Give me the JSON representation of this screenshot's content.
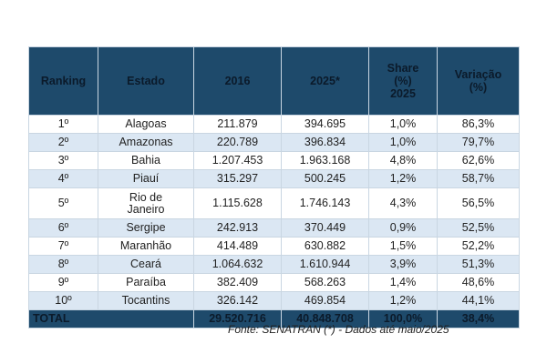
{
  "chart_data": {
    "type": "table",
    "columns": [
      "Ranking",
      "Estado",
      "2016",
      "2025*",
      "Share (%) 2025",
      "Variação (%)"
    ],
    "header": {
      "ranking": "Ranking",
      "estado": "Estado",
      "y2016": "2016",
      "y2025": "2025*",
      "share_l1": "Share",
      "share_l2": "(%)",
      "share_l3": "2025",
      "var_l1": "Variação",
      "var_l2": "(%)"
    },
    "rows": [
      {
        "rank": "1º",
        "estado": "Alagoas",
        "y2016": "211.879",
        "y2025": "394.695",
        "share": "1,0%",
        "variacao": "86,3%"
      },
      {
        "rank": "2º",
        "estado": "Amazonas",
        "y2016": "220.789",
        "y2025": "396.834",
        "share": "1,0%",
        "variacao": "79,7%"
      },
      {
        "rank": "3º",
        "estado": "Bahia",
        "y2016": "1.207.453",
        "y2025": "1.963.168",
        "share": "4,8%",
        "variacao": "62,6%"
      },
      {
        "rank": "4º",
        "estado": "Piauí",
        "y2016": "315.297",
        "y2025": "500.245",
        "share": "1,2%",
        "variacao": "58,7%"
      },
      {
        "rank": "5º",
        "estado_l1": "Rio de",
        "estado_l2": "Janeiro",
        "y2016": "1.115.628",
        "y2025": "1.746.143",
        "share": "4,3%",
        "variacao": "56,5%"
      },
      {
        "rank": "6º",
        "estado": "Sergipe",
        "y2016": "242.913",
        "y2025": "370.449",
        "share": "0,9%",
        "variacao": "52,5%"
      },
      {
        "rank": "7º",
        "estado": "Maranhão",
        "y2016": "414.489",
        "y2025": "630.882",
        "share": "1,5%",
        "variacao": "52,2%"
      },
      {
        "rank": "8º",
        "estado": "Ceará",
        "y2016": "1.064.632",
        "y2025": "1.610.944",
        "share": "3,9%",
        "variacao": "51,3%"
      },
      {
        "rank": "9º",
        "estado": "Paraíba",
        "y2016": "382.409",
        "y2025": "568.263",
        "share": "1,4%",
        "variacao": "48,6%"
      },
      {
        "rank": "10º",
        "estado": "Tocantins",
        "y2016": "326.142",
        "y2025": "469.854",
        "share": "1,2%",
        "variacao": "44,1%"
      }
    ],
    "total": {
      "label": "TOTAL",
      "y2016": "29.520.716",
      "y2025": "40.848.708",
      "share": "100,0%",
      "variacao": "38,4%"
    },
    "source": "Fonte: SENATRAN (*) - Dados até maio/2025"
  },
  "colors": {
    "header_bg": "#1e4a6b",
    "header_text": "#0b1a2a",
    "row_alt_bg": "#dbe7f3",
    "border": "#c9d6e2"
  }
}
